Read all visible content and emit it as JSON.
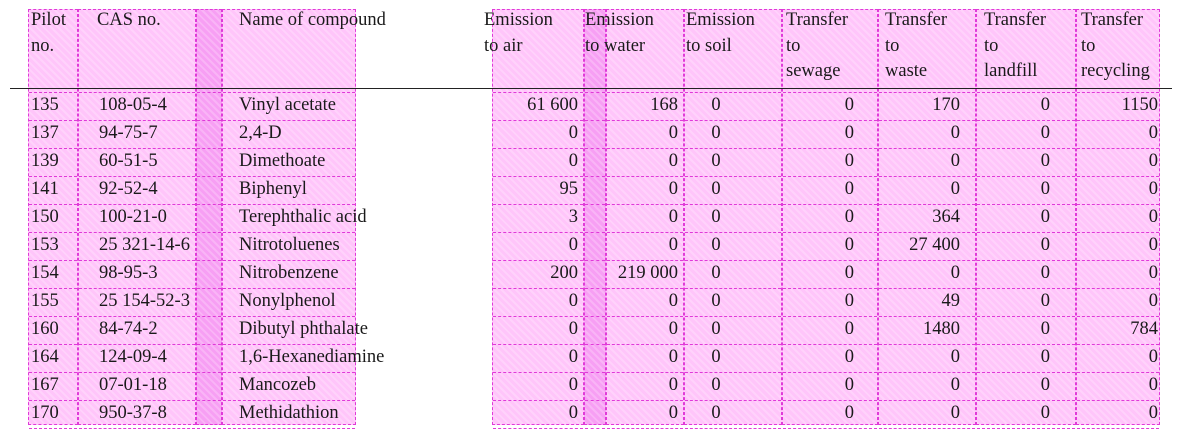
{
  "headers": {
    "pilot": [
      "Pilot",
      "no."
    ],
    "cas": [
      "CAS no."
    ],
    "name": [
      "Name of compound"
    ],
    "emission_air": [
      "Emission",
      "to air"
    ],
    "emission_water": [
      "Emission",
      "to water"
    ],
    "emission_soil": [
      "Emission",
      "to soil"
    ],
    "transfer_sewage": [
      "Transfer",
      "to",
      "sewage"
    ],
    "transfer_waste": [
      "Transfer",
      "to",
      "waste"
    ],
    "transfer_landfill": [
      "Transfer",
      "to",
      "landfill"
    ],
    "transfer_recycling": [
      "Transfer",
      "to",
      "recycling"
    ]
  },
  "rows": [
    {
      "pilot": "135",
      "cas": "108-05-4",
      "name": "Vinyl acetate",
      "air": "61 600",
      "water": "168",
      "soil": "0",
      "sewage": "0",
      "waste": "170",
      "landfill": "0",
      "recycling": "1150"
    },
    {
      "pilot": "137",
      "cas": "94-75-7",
      "name": "2,4-D",
      "air": "0",
      "water": "0",
      "soil": "0",
      "sewage": "0",
      "waste": "0",
      "landfill": "0",
      "recycling": "0"
    },
    {
      "pilot": "139",
      "cas": "60-51-5",
      "name": "Dimethoate",
      "air": "0",
      "water": "0",
      "soil": "0",
      "sewage": "0",
      "waste": "0",
      "landfill": "0",
      "recycling": "0"
    },
    {
      "pilot": "141",
      "cas": "92-52-4",
      "name": "Biphenyl",
      "air": "95",
      "water": "0",
      "soil": "0",
      "sewage": "0",
      "waste": "0",
      "landfill": "0",
      "recycling": "0"
    },
    {
      "pilot": "150",
      "cas": "100-21-0",
      "name": "Terephthalic acid",
      "air": "3",
      "water": "0",
      "soil": "0",
      "sewage": "0",
      "waste": "364",
      "landfill": "0",
      "recycling": "0"
    },
    {
      "pilot": "153",
      "cas": "25 321-14-6",
      "name": "Nitrotoluenes",
      "air": "0",
      "water": "0",
      "soil": "0",
      "sewage": "0",
      "waste": "27 400",
      "landfill": "0",
      "recycling": "0"
    },
    {
      "pilot": "154",
      "cas": "98-95-3",
      "name": "Nitrobenzene",
      "air": "200",
      "water": "219 000",
      "soil": "0",
      "sewage": "0",
      "waste": "0",
      "landfill": "0",
      "recycling": "0"
    },
    {
      "pilot": "155",
      "cas": "25 154-52-3",
      "name": "Nonylphenol",
      "air": "0",
      "water": "0",
      "soil": "0",
      "sewage": "0",
      "waste": "49",
      "landfill": "0",
      "recycling": "0"
    },
    {
      "pilot": "160",
      "cas": "84-74-2",
      "name": "Dibutyl phthalate",
      "air": "0",
      "water": "0",
      "soil": "0",
      "sewage": "0",
      "waste": "1480",
      "landfill": "0",
      "recycling": "784"
    },
    {
      "pilot": "164",
      "cas": "124-09-4",
      "name": "1,6-Hexanediamine",
      "air": "0",
      "water": "0",
      "soil": "0",
      "sewage": "0",
      "waste": "0",
      "landfill": "0",
      "recycling": "0"
    },
    {
      "pilot": "167",
      "cas": "07-01-18",
      "name": "Mancozeb",
      "air": "0",
      "water": "0",
      "soil": "0",
      "sewage": "0",
      "waste": "0",
      "landfill": "0",
      "recycling": "0"
    },
    {
      "pilot": "170",
      "cas": "950-37-8",
      "name": "Methidathion",
      "air": "0",
      "water": "0",
      "soil": "0",
      "sewage": "0",
      "waste": "0",
      "landfill": "0",
      "recycling": "0"
    }
  ]
}
